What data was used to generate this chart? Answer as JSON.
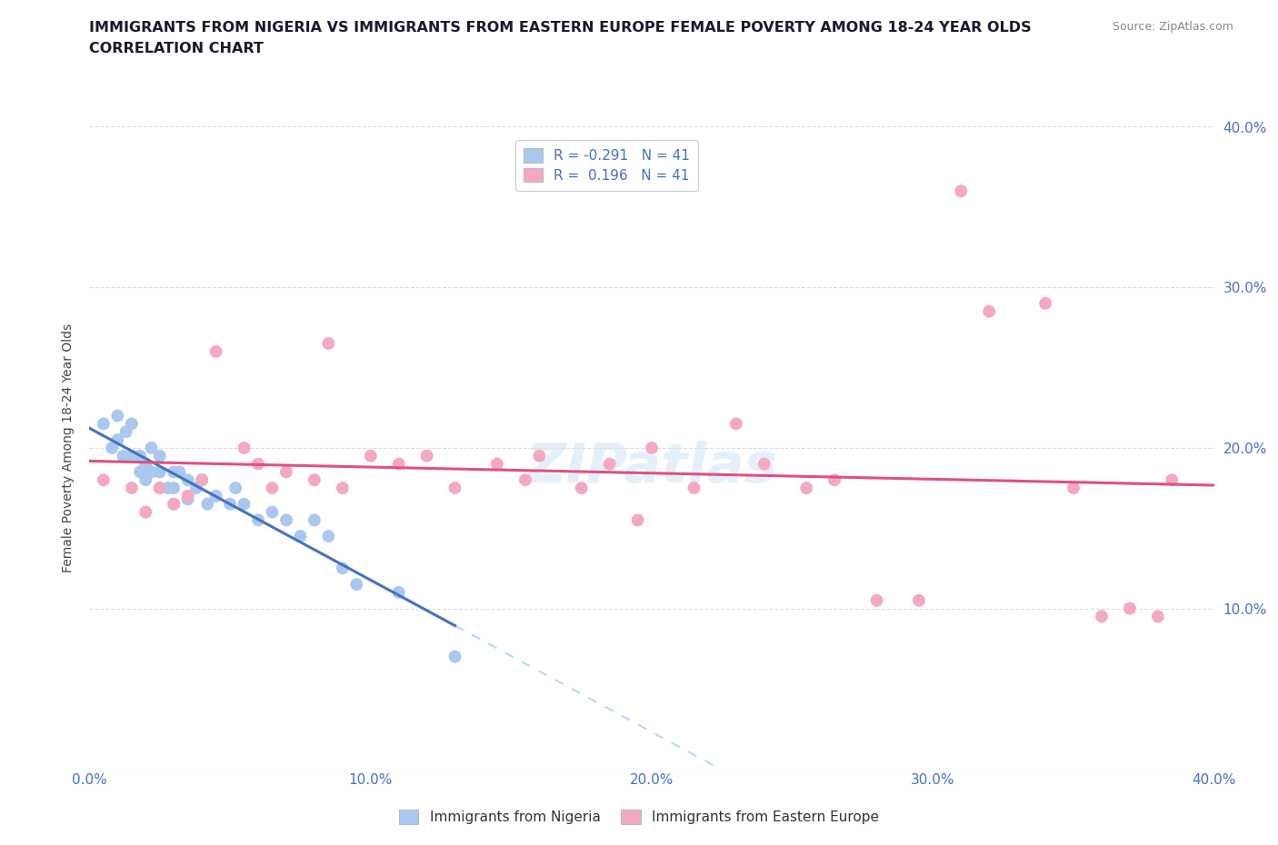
{
  "title_line1": "IMMIGRANTS FROM NIGERIA VS IMMIGRANTS FROM EASTERN EUROPE FEMALE POVERTY AMONG 18-24 YEAR OLDS",
  "title_line2": "CORRELATION CHART",
  "source_text": "Source: ZipAtlas.com",
  "ylabel": "Female Poverty Among 18-24 Year Olds",
  "xlim": [
    0.0,
    0.4
  ],
  "ylim": [
    0.0,
    0.4
  ],
  "xticks": [
    0.0,
    0.1,
    0.2,
    0.3,
    0.4
  ],
  "yticks": [
    0.0,
    0.1,
    0.2,
    0.3,
    0.4
  ],
  "xticklabels": [
    "0.0%",
    "10.0%",
    "20.0%",
    "30.0%",
    "40.0%"
  ],
  "yticklabels_right": [
    "",
    "10.0%",
    "20.0%",
    "30.0%",
    "40.0%"
  ],
  "nigeria_R": -0.291,
  "nigeria_N": 41,
  "eastern_R": 0.196,
  "eastern_N": 41,
  "nigeria_color": "#a8c8f0",
  "eastern_color": "#f5a8c0",
  "nigeria_line_color": "#4472c4",
  "eastern_line_color": "#e05080",
  "nigeria_dashed_color": "#b8d8f8",
  "tick_color": "#4472c4",
  "watermark": "ZIPatlas",
  "nigeria_x": [
    0.005,
    0.008,
    0.01,
    0.01,
    0.012,
    0.013,
    0.015,
    0.015,
    0.018,
    0.018,
    0.02,
    0.02,
    0.022,
    0.022,
    0.025,
    0.025,
    0.025,
    0.028,
    0.03,
    0.03,
    0.03,
    0.032,
    0.035,
    0.035,
    0.038,
    0.04,
    0.042,
    0.045,
    0.05,
    0.052,
    0.055,
    0.06,
    0.065,
    0.07,
    0.075,
    0.08,
    0.085,
    0.09,
    0.095,
    0.11,
    0.13
  ],
  "nigeria_y": [
    0.215,
    0.2,
    0.22,
    0.205,
    0.195,
    0.21,
    0.215,
    0.195,
    0.195,
    0.185,
    0.19,
    0.18,
    0.2,
    0.185,
    0.195,
    0.185,
    0.175,
    0.175,
    0.185,
    0.175,
    0.165,
    0.185,
    0.18,
    0.168,
    0.175,
    0.18,
    0.165,
    0.17,
    0.165,
    0.175,
    0.165,
    0.155,
    0.16,
    0.155,
    0.145,
    0.155,
    0.145,
    0.125,
    0.115,
    0.11,
    0.07
  ],
  "eastern_x": [
    0.005,
    0.015,
    0.02,
    0.025,
    0.03,
    0.035,
    0.04,
    0.045,
    0.055,
    0.06,
    0.065,
    0.07,
    0.08,
    0.085,
    0.09,
    0.1,
    0.11,
    0.12,
    0.13,
    0.145,
    0.155,
    0.16,
    0.175,
    0.185,
    0.195,
    0.2,
    0.215,
    0.23,
    0.24,
    0.255,
    0.265,
    0.28,
    0.295,
    0.31,
    0.32,
    0.34,
    0.35,
    0.36,
    0.37,
    0.38,
    0.385
  ],
  "eastern_y": [
    0.18,
    0.175,
    0.16,
    0.175,
    0.165,
    0.17,
    0.18,
    0.26,
    0.2,
    0.19,
    0.175,
    0.185,
    0.18,
    0.265,
    0.175,
    0.195,
    0.19,
    0.195,
    0.175,
    0.19,
    0.18,
    0.195,
    0.175,
    0.19,
    0.155,
    0.2,
    0.175,
    0.215,
    0.19,
    0.175,
    0.18,
    0.105,
    0.105,
    0.36,
    0.285,
    0.29,
    0.175,
    0.095,
    0.1,
    0.095,
    0.18
  ]
}
